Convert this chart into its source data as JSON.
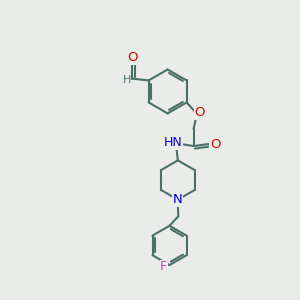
{
  "bg_color": "#eaecea",
  "bond_color": "#4a7068",
  "o_color": "#cc1100",
  "n_color": "#0000cc",
  "f_color": "#cc44aa",
  "lw": 1.5,
  "fs": 9.0,
  "fig_w": 3.0,
  "fig_h": 3.0,
  "dpi": 100,
  "xlim": [
    0,
    10
  ],
  "ylim": [
    0,
    10
  ]
}
